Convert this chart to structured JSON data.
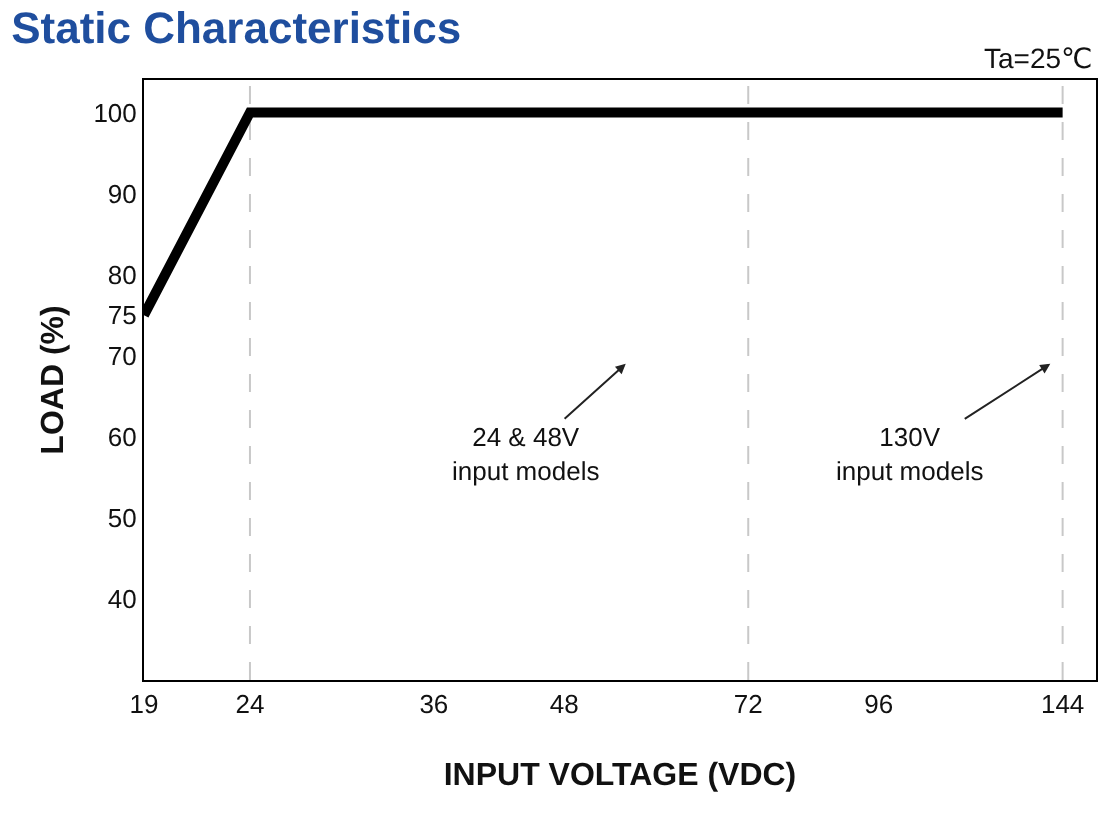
{
  "chart_data": {
    "type": "line",
    "title": "Static Characteristics",
    "xlabel": "INPUT VOLTAGE (VDC)",
    "ylabel": "LOAD (%)",
    "annotations": [
      "Ta=25℃",
      "24 & 48V\ninput models",
      "130V\ninput models"
    ],
    "x": [
      19,
      24,
      144
    ],
    "series": [
      {
        "color": "#000000",
        "values": [
          75,
          100,
          100
        ]
      }
    ],
    "log": "x",
    "xlim": [
      19,
      155
    ],
    "ylim": [
      30,
      104
    ],
    "xticks": [
      19,
      24,
      36,
      48,
      72,
      96,
      144
    ],
    "yticks": [
      40,
      50,
      60,
      70,
      75,
      80,
      90,
      100
    ],
    "ref_lines": [
      {
        "axis": "x",
        "value": 24,
        "color": "#c8c8c8",
        "line_style": "dashed"
      },
      {
        "axis": "x",
        "value": 72,
        "color": "#c8c8c8",
        "line_style": "dashed"
      },
      {
        "axis": "x",
        "value": 144,
        "color": "#c8c8c8",
        "line_style": "dashed"
      }
    ],
    "marker": "none",
    "line_style": "solid"
  }
}
